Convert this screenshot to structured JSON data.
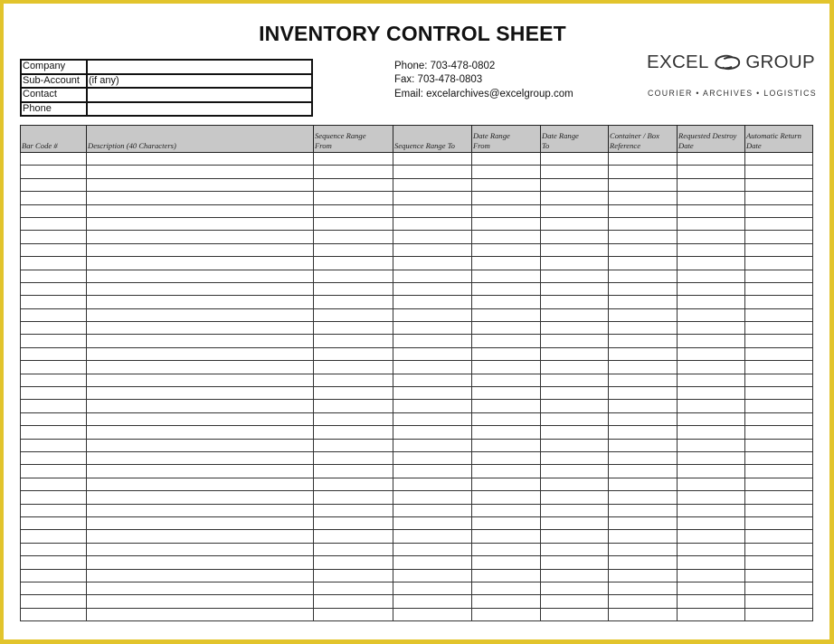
{
  "title": "INVENTORY CONTROL SHEET",
  "info_fields": [
    {
      "label": "Company",
      "value": ""
    },
    {
      "label": "Sub-Account",
      "value": "(if any)"
    },
    {
      "label": "Contact",
      "value": ""
    },
    {
      "label": "Phone",
      "value": ""
    }
  ],
  "contact": {
    "phone": "Phone:  703-478-0802",
    "fax": "Fax:  703-478-0803",
    "email": "Email: excelarchives@excelgroup.com"
  },
  "logo": {
    "left": "EXCEL",
    "right": "GROUP",
    "tagline": "COURIER • ARCHIVES • LOGISTICS"
  },
  "columns": [
    {
      "line1": "",
      "line2": "Bar Code #"
    },
    {
      "line1": "",
      "line2": "Description (40 Characters)"
    },
    {
      "line1": "Sequence Range",
      "line2": "From"
    },
    {
      "line1": "",
      "line2": "Sequence Range To"
    },
    {
      "line1": "Date Range",
      "line2": "From"
    },
    {
      "line1": "Date Range",
      "line2": "To"
    },
    {
      "line1": "Container / Box",
      "line2": "Reference"
    },
    {
      "line1": "Requested Destroy",
      "line2": "Date"
    },
    {
      "line1": "Automatic Return",
      "line2": "Date"
    }
  ],
  "row_count": 36,
  "colors": {
    "border": "#e2c42c",
    "header_bg": "#c8c8c8"
  }
}
